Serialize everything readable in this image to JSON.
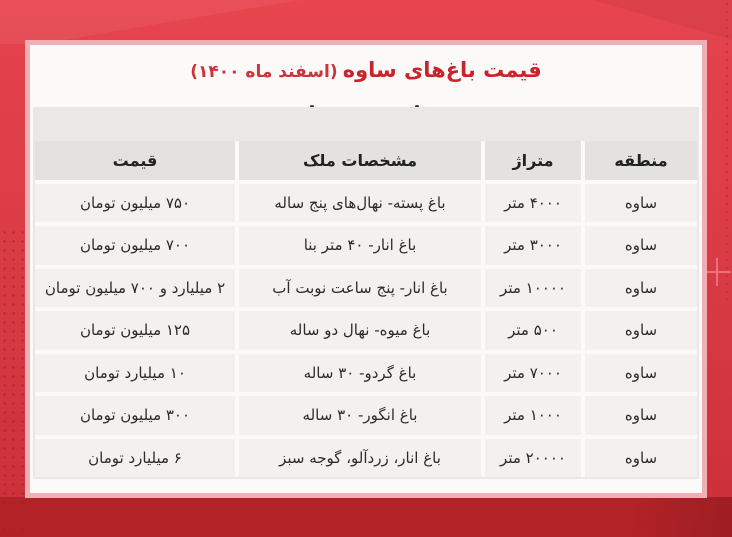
{
  "title": {
    "main": "قیمت باغ‌های ساوه",
    "sub": "(اسفند ماه ۱۴۰۰)"
  },
  "chart_data": {
    "type": "table",
    "title": "قیمت باغ‌های ساوه (اسفند ماه ۱۴۰۰)",
    "columns": [
      "منطقه",
      "متراژ",
      "مشخصات ملک",
      "قیمت"
    ],
    "rows": [
      [
        "ساوه",
        "۴۰۰۰ متر",
        "باغ پسته- نهال‌های پنج ساله",
        "۷۵۰ میلیون تومان"
      ],
      [
        "ساوه",
        "۳۰۰۰ متر",
        "باغ انار- ۴۰ متر بنا",
        "۷۰۰ میلیون تومان"
      ],
      [
        "ساوه",
        "۱۰۰۰۰ متر",
        "باغ انار- پنج ساعت نوبت آب",
        "۲ میلیارد و ۷۰۰ میلیون تومان"
      ],
      [
        "ساوه",
        "۵۰۰ متر",
        "باغ میوه- نهال دو ساله",
        "۱۲۵ میلیون تومان"
      ],
      [
        "ساوه",
        "۷۰۰۰ متر",
        "باغ گردو- ۳۰ ساله",
        "۱۰ میلیارد تومان"
      ],
      [
        "ساوه",
        "۱۰۰۰ متر",
        "باغ انگور- ۳۰ ساله",
        "۳۰۰ میلیون تومان"
      ],
      [
        "ساوه",
        "۲۰۰۰۰ متر",
        "باغ انار، زردآلو، گوجه سبز",
        "۶ میلیارد تومان"
      ]
    ]
  },
  "colors": {
    "accent_red": "#c9232b",
    "background_red_top": "#e8454f",
    "background_red_bottom_band": "#b22227",
    "panel_border_pink": "#efb0b5",
    "header_cell_gray": "#e3e2e0",
    "data_cell_gray": "#f2f1ef"
  }
}
